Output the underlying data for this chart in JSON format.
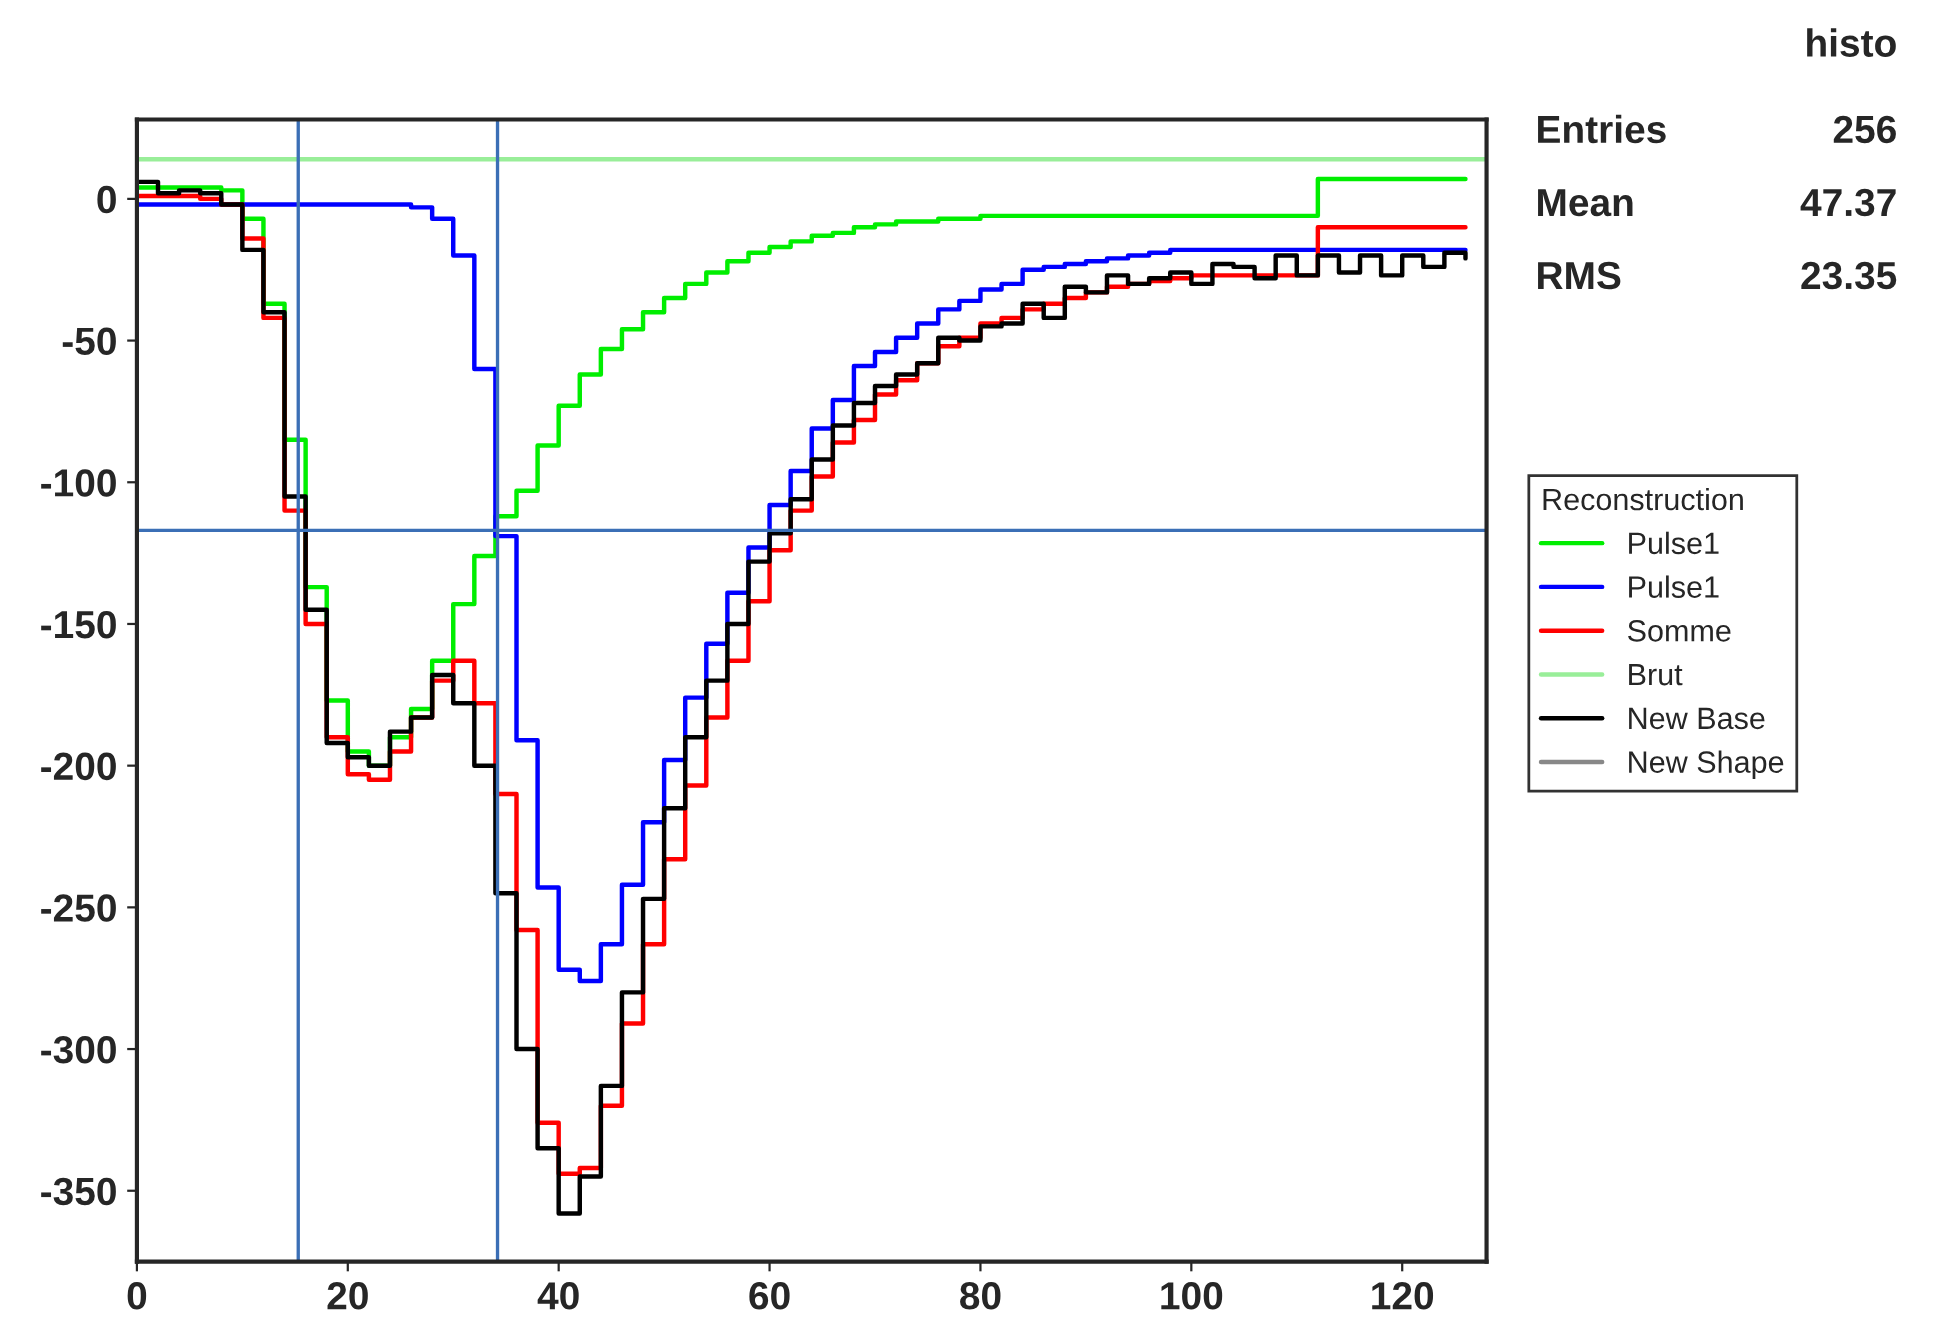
{
  "chart_data": {
    "type": "step",
    "x": [
      0,
      2,
      4,
      6,
      8,
      10,
      12,
      14,
      16,
      18,
      20,
      22,
      24,
      26,
      28,
      30,
      32,
      34,
      36,
      38,
      40,
      42,
      44,
      46,
      48,
      50,
      52,
      54,
      56,
      58,
      60,
      62,
      64,
      66,
      68,
      70,
      72,
      74,
      76,
      78,
      80,
      82,
      84,
      86,
      88,
      90,
      92,
      94,
      96,
      98,
      100,
      102,
      104,
      106,
      108,
      110,
      112,
      114,
      116,
      118,
      120,
      122,
      124,
      126
    ],
    "series": [
      {
        "name": "Pulse1",
        "color": "#00ee00",
        "values": [
          4,
          4,
          4,
          4,
          3,
          -7,
          -37,
          -85,
          -137,
          -177,
          -195,
          -200,
          -190,
          -180,
          -163,
          -143,
          -126,
          -112,
          -103,
          -87,
          -73,
          -62,
          -53,
          -46,
          -40,
          -35,
          -30,
          -26,
          -22,
          -19,
          -17,
          -15,
          -13,
          -12,
          -10,
          -9,
          -8,
          -8,
          -7,
          -7,
          -6,
          -6,
          -6,
          -6,
          -6,
          -6,
          -6,
          -6,
          -6,
          -6,
          -6,
          -6,
          -6,
          -6,
          -6,
          -6,
          7,
          7,
          7,
          7,
          7,
          7,
          7,
          7
        ]
      },
      {
        "name": "Pulse1",
        "color": "#0000ff",
        "values": [
          -2,
          -2,
          -2,
          -2,
          -2,
          -2,
          -2,
          -2,
          -2,
          -2,
          -2,
          -2,
          -2,
          -3,
          -7,
          -20,
          -60,
          -119,
          -191,
          -243,
          -272,
          -276,
          -263,
          -242,
          -220,
          -198,
          -176,
          -157,
          -139,
          -123,
          -108,
          -96,
          -81,
          -71,
          -59,
          -54,
          -49,
          -44,
          -39,
          -36,
          -32,
          -30,
          -25,
          -24,
          -23,
          -22,
          -21,
          -20,
          -19,
          -18,
          -18,
          -18,
          -18,
          -18,
          -18,
          -18,
          -18,
          -18,
          -18,
          -18,
          -18,
          -18,
          -18,
          -18
        ]
      },
      {
        "name": "Somme",
        "color": "#ff0000",
        "values": [
          1,
          1,
          1,
          0,
          -2,
          -14,
          -42,
          -110,
          -150,
          -190,
          -203,
          -205,
          -195,
          -183,
          -170,
          -163,
          -178,
          -210,
          -258,
          -326,
          -344,
          -342,
          -320,
          -291,
          -263,
          -233,
          -207,
          -183,
          -163,
          -142,
          -124,
          -110,
          -98,
          -86,
          -78,
          -69,
          -64,
          -58,
          -52,
          -49,
          -44,
          -42,
          -39,
          -37,
          -35,
          -33,
          -31,
          -30,
          -29,
          -28,
          -27,
          -27,
          -27,
          -27,
          -27,
          -27,
          -10,
          -10,
          -10,
          -10,
          -10,
          -10,
          -10,
          -10
        ]
      },
      {
        "name": "Brut",
        "color": "#99ee99",
        "type": "line",
        "x": [
          0,
          128
        ],
        "values": [
          14,
          14
        ]
      },
      {
        "name": "New Base",
        "color": "#000000",
        "values": [
          6,
          2,
          3,
          2,
          -2,
          -18,
          -40,
          -105,
          -145,
          -192,
          -197,
          -200,
          -188,
          -183,
          -168,
          -178,
          -200,
          -245,
          -300,
          -335,
          -358,
          -345,
          -313,
          -280,
          -247,
          -215,
          -190,
          -170,
          -150,
          -128,
          -118,
          -106,
          -92,
          -80,
          -72,
          -66,
          -62,
          -58,
          -49,
          -50,
          -45,
          -44,
          -37,
          -42,
          -31,
          -33,
          -27,
          -30,
          -28,
          -26,
          -30,
          -23,
          -24,
          -28,
          -20,
          -27,
          -20,
          -26,
          -20,
          -27,
          -20,
          -24,
          -19,
          -21
        ]
      },
      {
        "name": "New Shape",
        "color": "#888888",
        "values": [
          null,
          null,
          null,
          null,
          null,
          null,
          null,
          null,
          null,
          null,
          null,
          null,
          null,
          null,
          null,
          null,
          null,
          null,
          null,
          null,
          null,
          null,
          null,
          null,
          null,
          null,
          null,
          null,
          null,
          null,
          null,
          null,
          null,
          null,
          null,
          null,
          null,
          null,
          null,
          null,
          null,
          null,
          null,
          null,
          null,
          null,
          null,
          null,
          null,
          null,
          null,
          null,
          null,
          null,
          null,
          null,
          null,
          null,
          null,
          null,
          null,
          null,
          null,
          null
        ]
      }
    ],
    "legend_title": "Reconstruction",
    "legend": "right",
    "annotations": [
      "histo",
      "Entries",
      "256",
      "Mean",
      "47.37",
      "RMS",
      "23.35"
    ],
    "ref_lines": [
      {
        "axis": "x",
        "value": 15.3,
        "color": "#3b6fb6"
      },
      {
        "axis": "x",
        "value": 34.2,
        "color": "#3b6fb6"
      },
      {
        "axis": "y",
        "value": -117,
        "color": "#3b6fb6"
      }
    ],
    "xlim": [
      0,
      128
    ],
    "xticks": [
      0,
      20,
      40,
      60,
      80,
      100,
      120
    ],
    "ylim": [
      -375,
      28
    ],
    "yticks": [
      0,
      -50,
      -100,
      -150,
      -200,
      -250,
      -300,
      -350
    ],
    "grid": false
  }
}
